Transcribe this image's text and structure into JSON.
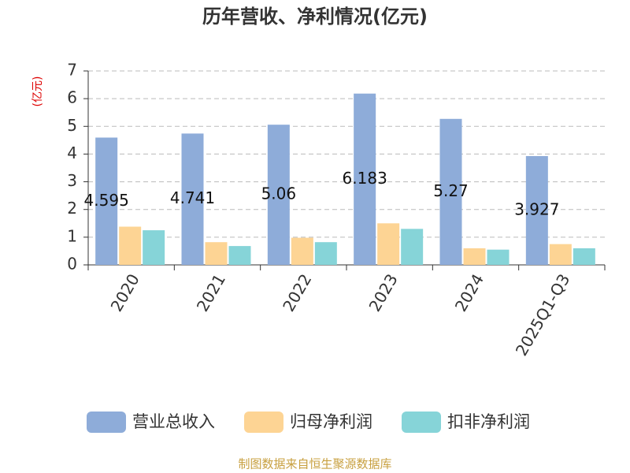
{
  "chart_data": {
    "type": "bar",
    "title": "历年营收、净利情况(亿元)",
    "y_unit": "(亿元)",
    "source": "制图数据来自恒生聚源数据库",
    "categories": [
      "2020",
      "2021",
      "2022",
      "2023",
      "2024",
      "2025Q1-Q3"
    ],
    "series": [
      {
        "name": "营业总收入",
        "color": "#8eacd9",
        "values": [
          4.595,
          4.741,
          5.06,
          6.183,
          5.27,
          3.927
        ],
        "data_labels": true
      },
      {
        "name": "归母净利润",
        "color": "#fdd494",
        "values": [
          1.38,
          0.82,
          0.98,
          1.5,
          0.6,
          0.75
        ]
      },
      {
        "name": "扣非净利润",
        "color": "#86d4d8",
        "values": [
          1.25,
          0.68,
          0.82,
          1.3,
          0.55,
          0.6
        ]
      }
    ],
    "ylim": [
      0,
      7
    ],
    "yticks": [
      0,
      1,
      2,
      3,
      4,
      5,
      6,
      7
    ],
    "grid": true,
    "legend": "bottom"
  }
}
